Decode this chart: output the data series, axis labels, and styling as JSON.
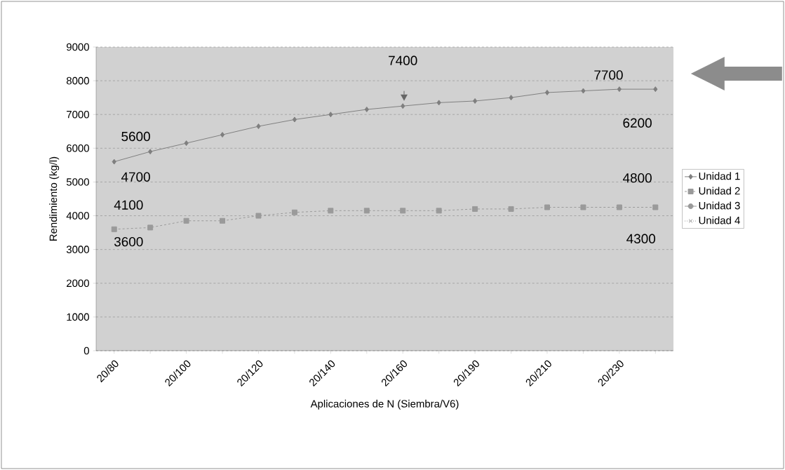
{
  "chart_data": {
    "type": "line",
    "xlabel": "Aplicaciones de N (Siembra/V6)",
    "ylabel": "Rendimiento (kg/l)",
    "categories": [
      "20/80",
      null,
      "20/100",
      null,
      "20/120",
      null,
      "20/140",
      null,
      "20/160",
      null,
      "20/190",
      null,
      "20/210",
      null,
      "20/230",
      null
    ],
    "series": [
      {
        "name": "Unidad 1",
        "color": "#7f7f7f",
        "marker": "diamond",
        "line_style": "solid",
        "values": [
          5600,
          5900,
          6150,
          6400,
          6650,
          6850,
          7000,
          7150,
          7250,
          7350,
          7400,
          7500,
          7650,
          7700,
          7750,
          7750
        ]
      },
      {
        "name": "Unidad 2",
        "color": "#9a9a9a",
        "marker": "square",
        "line_style": "dashed",
        "values": [
          3600,
          3650,
          3850,
          3850,
          4000,
          4100,
          4150,
          4150,
          4150,
          4150,
          4200,
          4200,
          4250,
          4250,
          4250,
          4250
        ]
      },
      {
        "name": "Unidad 3",
        "color": "#9a9a9a",
        "marker": "circle",
        "line_style": "solid",
        "values": [
          null,
          null,
          null,
          null,
          null,
          null,
          null,
          null,
          null,
          null,
          null,
          null,
          null,
          null,
          null,
          null
        ]
      },
      {
        "name": "Unidad 4",
        "color": "#9a9a9a",
        "marker": "cross",
        "line_style": "dotted",
        "values": [
          null,
          null,
          null,
          null,
          null,
          null,
          null,
          null,
          null,
          null,
          null,
          null,
          null,
          null,
          null,
          null
        ]
      }
    ],
    "ylim": [
      0,
      9000
    ],
    "yticks": [
      0,
      1000,
      2000,
      3000,
      4000,
      5000,
      6000,
      7000,
      8000,
      9000
    ],
    "grid": "y",
    "legend": "right",
    "annotations": [
      "5600",
      "4700",
      "4100",
      "3600",
      "7400",
      "7700",
      "6200",
      "4800",
      "4300"
    ]
  }
}
